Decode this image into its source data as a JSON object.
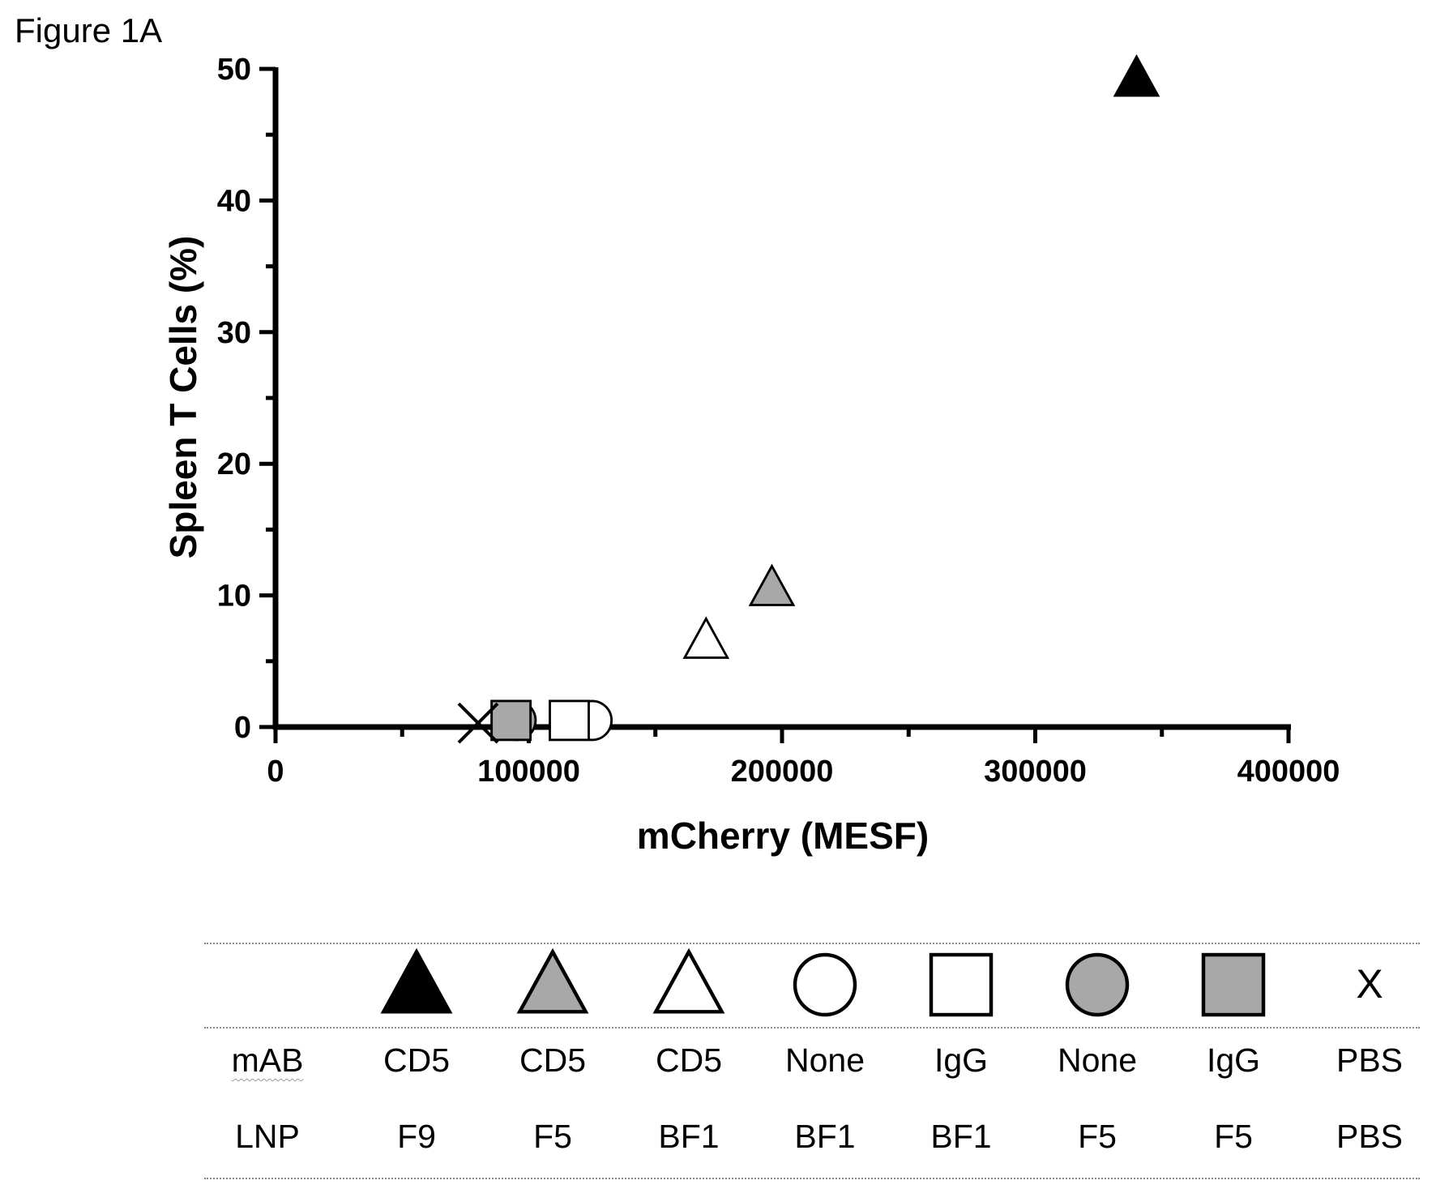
{
  "figure_label": "Figure 1A",
  "chart_data": {
    "type": "scatter",
    "title": "",
    "xlabel": "mCherry (MESF)",
    "ylabel": "Spleen T Cells (%)",
    "xlim": [
      0,
      400000
    ],
    "ylim": [
      0,
      50
    ],
    "x_ticks": [
      "0",
      "100000",
      "200000",
      "300000",
      "400000"
    ],
    "y_ticks": [
      "0",
      "10",
      "20",
      "30",
      "40",
      "50"
    ],
    "grid": false,
    "points": [
      {
        "mAB": "CD5",
        "LNP": "F9",
        "marker": "triangle",
        "fill": "#000000",
        "x": 340000,
        "y": 49.3
      },
      {
        "mAB": "CD5",
        "LNP": "F5",
        "marker": "triangle",
        "fill": "#a8a8a8",
        "x": 196000,
        "y": 10.6
      },
      {
        "mAB": "CD5",
        "LNP": "BF1",
        "marker": "triangle",
        "fill": "#ffffff",
        "x": 170000,
        "y": 6.6
      },
      {
        "mAB": "None",
        "LNP": "BF1",
        "marker": "circle",
        "fill": "#ffffff",
        "x": 125000,
        "y": 0.5
      },
      {
        "mAB": "IgG",
        "LNP": "BF1",
        "marker": "square",
        "fill": "#ffffff",
        "x": 116000,
        "y": 0.5
      },
      {
        "mAB": "None",
        "LNP": "F5",
        "marker": "circle",
        "fill": "#a8a8a8",
        "x": 95000,
        "y": 0.5
      },
      {
        "mAB": "IgG",
        "LNP": "F5",
        "marker": "square",
        "fill": "#a8a8a8",
        "x": 93000,
        "y": 0.5
      },
      {
        "mAB": "PBS",
        "LNP": "PBS",
        "marker": "x",
        "fill": "#000000",
        "x": 80000,
        "y": 0.3
      }
    ]
  },
  "legend": {
    "row_headers": [
      "mAB",
      "LNP"
    ],
    "columns": [
      {
        "marker": "triangle",
        "fill": "#000000",
        "mAB": "CD5",
        "LNP": "F9"
      },
      {
        "marker": "triangle",
        "fill": "#a8a8a8",
        "mAB": "CD5",
        "LNP": "F5"
      },
      {
        "marker": "triangle",
        "fill": "#ffffff",
        "mAB": "CD5",
        "LNP": "BF1"
      },
      {
        "marker": "circle",
        "fill": "#ffffff",
        "mAB": "None",
        "LNP": "BF1"
      },
      {
        "marker": "square",
        "fill": "#ffffff",
        "mAB": "IgG",
        "LNP": "BF1"
      },
      {
        "marker": "circle",
        "fill": "#a8a8a8",
        "mAB": "None",
        "LNP": "F5"
      },
      {
        "marker": "square",
        "fill": "#a8a8a8",
        "mAB": "IgG",
        "LNP": "F5"
      },
      {
        "marker": "x",
        "fill": "#000000",
        "mAB": "PBS",
        "LNP": "PBS",
        "glyph": "X"
      }
    ]
  }
}
